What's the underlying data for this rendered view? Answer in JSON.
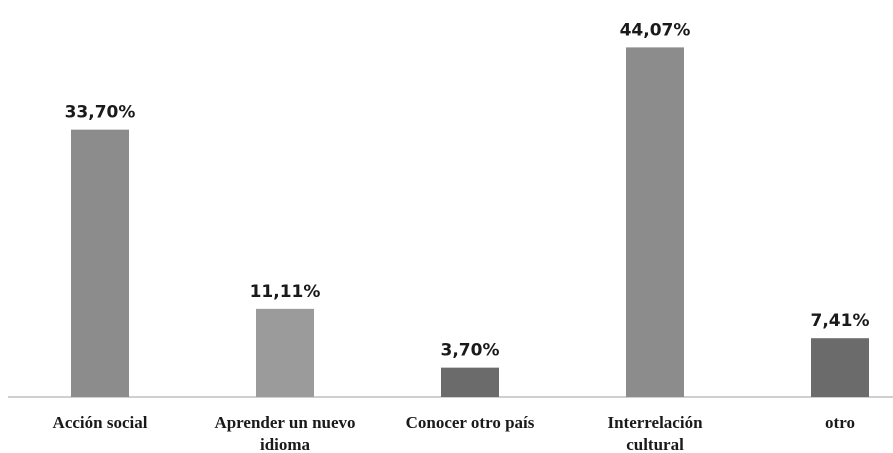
{
  "chart_data": {
    "type": "bar",
    "categories": [
      [
        "Acción social"
      ],
      [
        "Aprender un nuevo",
        "idioma"
      ],
      [
        "Conocer otro país"
      ],
      [
        "Interrelación",
        "cultural"
      ],
      [
        "otro"
      ]
    ],
    "values": [
      33.7,
      11.11,
      3.7,
      44.07,
      7.41
    ],
    "value_labels": [
      "33,70%",
      "11,11%",
      "3,70%",
      "44,07%",
      "7,41%"
    ],
    "bar_colors": [
      "#8c8c8c",
      "#9b9b9b",
      "#6b6b6b",
      "#8c8c8c",
      "#6b6b6b"
    ],
    "ylim": [
      0,
      45
    ],
    "grid": false,
    "legend": "none"
  }
}
